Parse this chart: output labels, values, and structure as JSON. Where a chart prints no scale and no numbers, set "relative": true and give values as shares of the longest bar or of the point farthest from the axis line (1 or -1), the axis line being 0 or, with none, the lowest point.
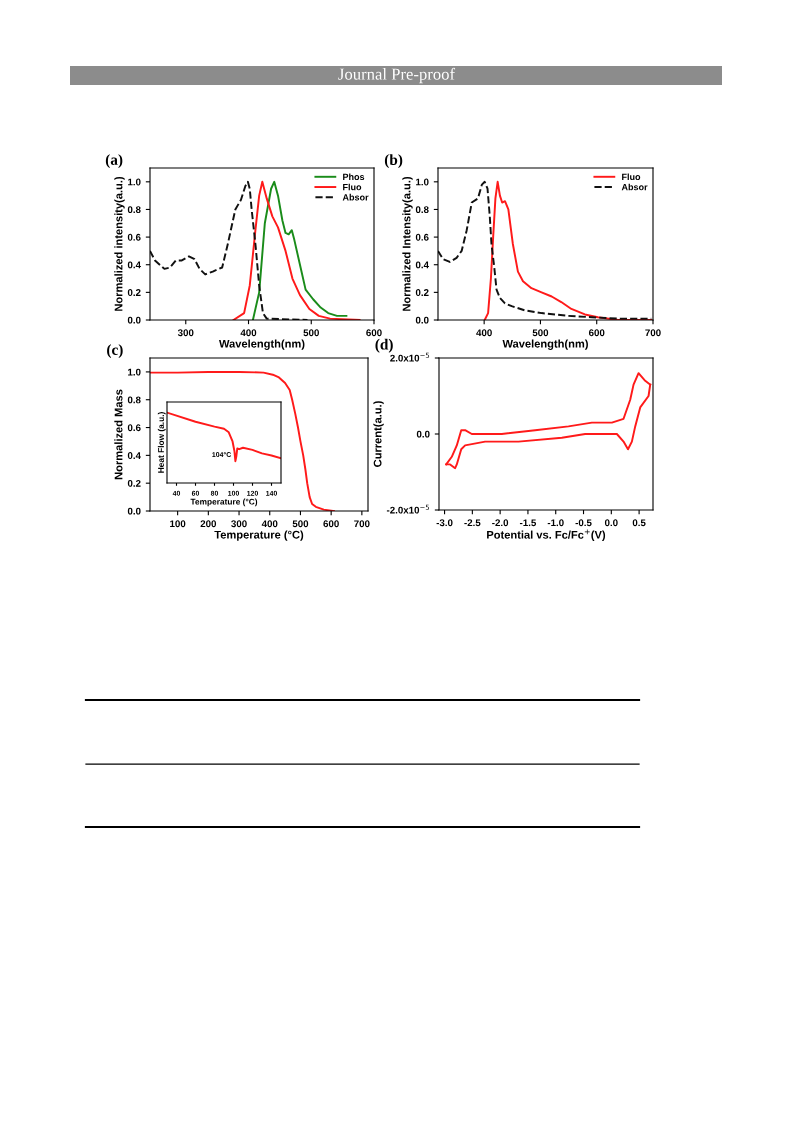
{
  "chart_data": [
    {
      "type": "line",
      "title": "(a)",
      "xlabel": "Wavelength(nm)",
      "ylabel": "Normalized intensity(a.u.)",
      "annotations": [
        "Journal Pre-proof"
      ],
      "xlim": [
        243,
        600
      ],
      "xticks": [
        300,
        400,
        500,
        600
      ],
      "ylim": [
        0,
        1.1
      ],
      "yticks": [
        {
          "value": 0,
          "label": "0.0"
        },
        0.2,
        0.4,
        0.6,
        0.8,
        {
          "value": 1,
          "label": "1.0"
        }
      ],
      "legend": "top right",
      "grid": false,
      "series": [
        {
          "name": "Phos",
          "color": "#1a8c1a",
          "x": [
            407,
            417,
            426,
            436,
            441,
            447,
            454,
            459,
            464,
            469,
            473,
            482,
            491,
            503,
            515,
            527,
            541,
            556
          ],
          "values": [
            0.0,
            0.2,
            0.7,
            0.95,
            1.0,
            0.9,
            0.72,
            0.63,
            0.62,
            0.65,
            0.58,
            0.4,
            0.22,
            0.15,
            0.09,
            0.05,
            0.03,
            0.03
          ]
        },
        {
          "name": "Fluo",
          "color": "#ff1a1a",
          "x": [
            376,
            393,
            402,
            411,
            417,
            422,
            429,
            438,
            447,
            459,
            470,
            482,
            497,
            512,
            530,
            577
          ],
          "values": [
            0.0,
            0.05,
            0.25,
            0.65,
            0.9,
            1.0,
            0.88,
            0.75,
            0.67,
            0.5,
            0.3,
            0.18,
            0.08,
            0.03,
            0.01,
            0.0
          ]
        },
        {
          "name": "Absor",
          "color": "#111111",
          "line_style": "dashed",
          "x": [
            243,
            251,
            266,
            275,
            284,
            293,
            305,
            314,
            322,
            331,
            343,
            358,
            367,
            379,
            388,
            395,
            399,
            402,
            405,
            411,
            417,
            423,
            429,
            494
          ],
          "values": [
            0.5,
            0.43,
            0.37,
            0.38,
            0.43,
            0.43,
            0.46,
            0.44,
            0.37,
            0.33,
            0.35,
            0.38,
            0.55,
            0.8,
            0.87,
            0.97,
            1.0,
            0.95,
            0.8,
            0.55,
            0.25,
            0.05,
            0.01,
            0.0
          ]
        }
      ]
    },
    {
      "type": "line",
      "title": "(b)",
      "xlabel": "Wavelength(nm)",
      "ylabel": "Normalized Intensity(a.u.)",
      "xlim": [
        318,
        700
      ],
      "xticks": [
        400,
        500,
        600,
        700
      ],
      "ylim": [
        0,
        1.1
      ],
      "yticks": [
        {
          "value": 0,
          "label": "0.0"
        },
        0.2,
        0.4,
        0.6,
        0.8,
        {
          "value": 1,
          "label": "1.0"
        }
      ],
      "legend": "top right",
      "grid": false,
      "series": [
        {
          "name": "Fluo",
          "color": "#ff1a1a",
          "x": [
            401,
            407,
            412,
            416,
            420,
            424,
            428,
            432,
            437,
            443,
            451,
            460,
            469,
            484,
            502,
            520,
            537,
            555,
            579,
            602,
            638,
            697
          ],
          "values": [
            0.0,
            0.05,
            0.3,
            0.6,
            0.88,
            1.0,
            0.9,
            0.85,
            0.86,
            0.8,
            0.55,
            0.35,
            0.28,
            0.23,
            0.2,
            0.17,
            0.13,
            0.08,
            0.04,
            0.02,
            0.0,
            0.0
          ]
        },
        {
          "name": "Absor",
          "color": "#111111",
          "line_style": "dashed",
          "x": [
            318,
            327,
            339,
            351,
            360,
            369,
            378,
            389,
            396,
            401,
            406,
            410,
            413,
            418,
            422,
            428,
            437,
            449,
            472,
            502,
            549,
            591,
            638,
            697
          ],
          "values": [
            0.5,
            0.44,
            0.42,
            0.45,
            0.5,
            0.65,
            0.85,
            0.88,
            0.98,
            1.0,
            0.95,
            0.75,
            0.55,
            0.38,
            0.22,
            0.16,
            0.12,
            0.1,
            0.07,
            0.05,
            0.03,
            0.02,
            0.01,
            0.01
          ]
        }
      ]
    },
    {
      "type": "line",
      "title": "(c)",
      "xlabel": "Temperature (°C)",
      "ylabel": "Normalized Mass",
      "xlim": [
        10,
        720
      ],
      "xticks": [
        100,
        200,
        300,
        400,
        500,
        600,
        700
      ],
      "ylim": [
        0,
        1.1
      ],
      "yticks": [
        {
          "value": 0,
          "label": "0.0"
        },
        0.2,
        0.4,
        0.6,
        0.8,
        {
          "value": 1,
          "label": "1.0"
        }
      ],
      "grid": false,
      "series": [
        {
          "color": "#ff1a1a",
          "x": [
            10,
            100,
            200,
            300,
            380,
            410,
            430,
            450,
            465,
            473,
            483,
            492,
            500,
            509,
            516,
            522,
            530,
            538,
            550,
            576,
            609
          ],
          "values": [
            0.995,
            0.995,
            1.0,
            1.0,
            0.995,
            0.98,
            0.96,
            0.92,
            0.87,
            0.8,
            0.7,
            0.6,
            0.5,
            0.4,
            0.3,
            0.2,
            0.1,
            0.05,
            0.03,
            0.01,
            0.0
          ]
        }
      ]
    },
    {
      "type": "line",
      "xlabel": "Temperature (°C)",
      "ylabel": "Heat Flow (a.u.)",
      "relative": true,
      "tick_labels": "x",
      "xlim": [
        30,
        150
      ],
      "xticks": [
        40,
        60,
        80,
        100,
        120,
        140
      ],
      "grid": false,
      "annotations": [
        {
          "text": "104°C",
          "x": 102,
          "y": 0.31
        }
      ],
      "series": [
        {
          "color": "#ff1a1a",
          "x": [
            30,
            60,
            80,
            90,
            95,
            99,
            101,
            102,
            103,
            104,
            106,
            110,
            120,
            130,
            140,
            150
          ],
          "values": [
            1.0,
            0.87,
            0.8,
            0.77,
            0.72,
            0.59,
            0.45,
            0.31,
            0.38,
            0.49,
            0.48,
            0.5,
            0.47,
            0.42,
            0.39,
            0.35
          ]
        }
      ]
    },
    {
      "type": "line",
      "title": "(d)",
      "xlabel": "Potential vs. Fc/Fc$^{+}$(V)",
      "ylabel": "Current(a.u.)",
      "xlim": [
        -3.1,
        0.75
      ],
      "xticks": [
        {
          "value": -3,
          "label": "-3.0"
        },
        -2.5,
        {
          "value": -2,
          "label": "-2.0"
        },
        -1.5,
        {
          "value": -1,
          "label": "-1.0"
        },
        -0.5,
        {
          "value": 0,
          "label": "0.0"
        },
        0.5
      ],
      "ylim": [
        -2e-05,
        2e-05
      ],
      "yticks": [
        {
          "value": -2e-05,
          "label": "-2.0x10$^{−5}$"
        },
        {
          "value": 0,
          "label": "0.0"
        },
        {
          "value": 2e-05,
          "label": "2.0x10$^{−5}$"
        }
      ],
      "grid": false,
      "series": [
        {
          "color": "#ff1a1a",
          "x": [
            -2.97,
            -2.87,
            -2.78,
            -2.7,
            -2.63,
            -2.51,
            -1.97,
            -1.37,
            -0.77,
            -0.35,
            0.01,
            0.22,
            0.34,
            0.4,
            0.49,
            0.61,
            0.7
          ],
          "values": [
            -8e-06,
            -6e-06,
            -3e-06,
            1e-06,
            1e-06,
            0.0,
            0.0,
            1e-06,
            2e-06,
            3e-06,
            3e-06,
            4e-06,
            9e-06,
            1.3e-05,
            1.6e-05,
            1.4e-05,
            1.3e-05
          ]
        },
        {
          "color": "#ff1a1a",
          "x": [
            0.7,
            0.67,
            0.52,
            0.43,
            0.37,
            0.3,
            0.22,
            0.1,
            -0.02,
            -0.47,
            -0.89,
            -1.67,
            -2.27,
            -2.63,
            -2.7,
            -2.78,
            -2.81,
            -2.9,
            -2.97
          ],
          "values": [
            1.3e-05,
            1e-05,
            7e-06,
            2e-06,
            -2e-06,
            -4e-06,
            -2e-06,
            0.0,
            0.0,
            0.0,
            -1e-06,
            -2e-06,
            -2e-06,
            -3e-06,
            -4e-06,
            -8e-06,
            -9e-06,
            -8e-06,
            -8e-06
          ]
        }
      ]
    }
  ]
}
